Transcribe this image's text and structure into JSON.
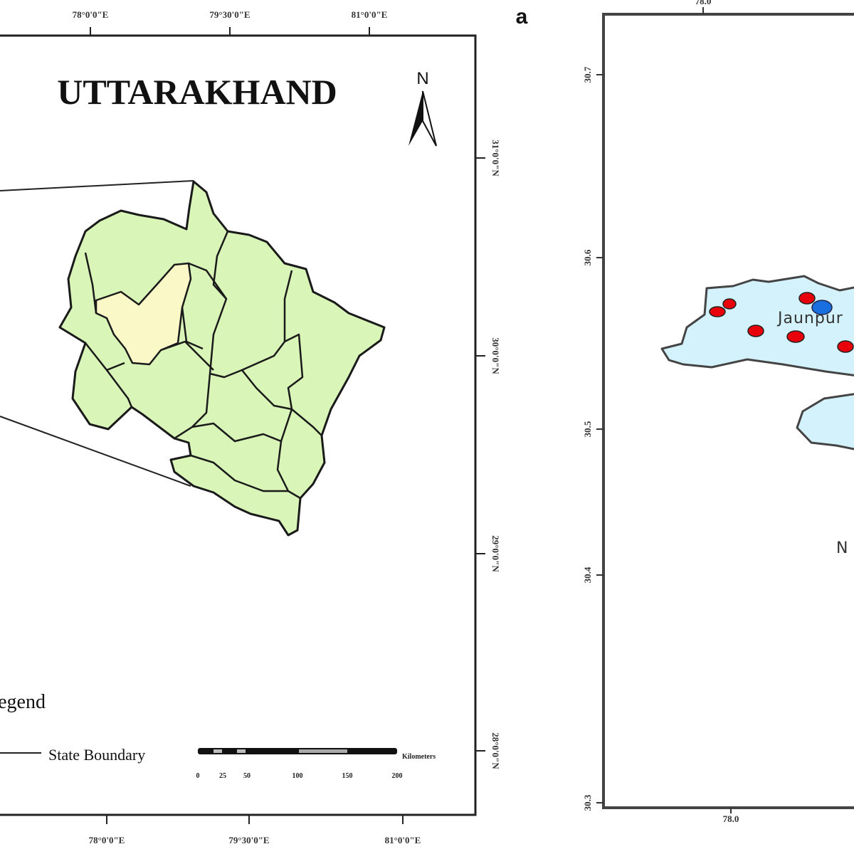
{
  "left_map": {
    "title": "UTTARAKHAND",
    "north_label": "N",
    "top_ticks": [
      "78°0'0\"E",
      "79°30'0\"E",
      "81°0'0\"E"
    ],
    "bottom_ticks": [
      "78°0'0\"E",
      "79°30'0\"E",
      "81°0'0\"E"
    ],
    "right_ticks": [
      "31°0'0\"N",
      "30°0'0\"N",
      "29°0'0\"N",
      "28°0'0\"N"
    ],
    "legend": {
      "title": "Legend",
      "items": [
        {
          "label": "State Boundary"
        }
      ]
    },
    "scale_bar": {
      "unit": "Kilometers",
      "labels": [
        "0",
        "25",
        "50",
        "100",
        "150",
        "200"
      ]
    },
    "colors": {
      "district_fill": "#d9f5b8",
      "highlight_fill": "#fbf8c8",
      "outline": "#1a1a1a"
    }
  },
  "right_map": {
    "panel_label": "a",
    "top_tick": "78.0",
    "bottom_tick": "78.0",
    "left_ticks": [
      "30.7",
      "30.6",
      "30.5",
      "30.4",
      "30.3"
    ],
    "place_labels": [
      "Jaunpur",
      "N"
    ],
    "colors": {
      "area_fill": "#d4f2fb",
      "site_point": "#e8000b",
      "main_point": "#1a6fe0"
    }
  }
}
